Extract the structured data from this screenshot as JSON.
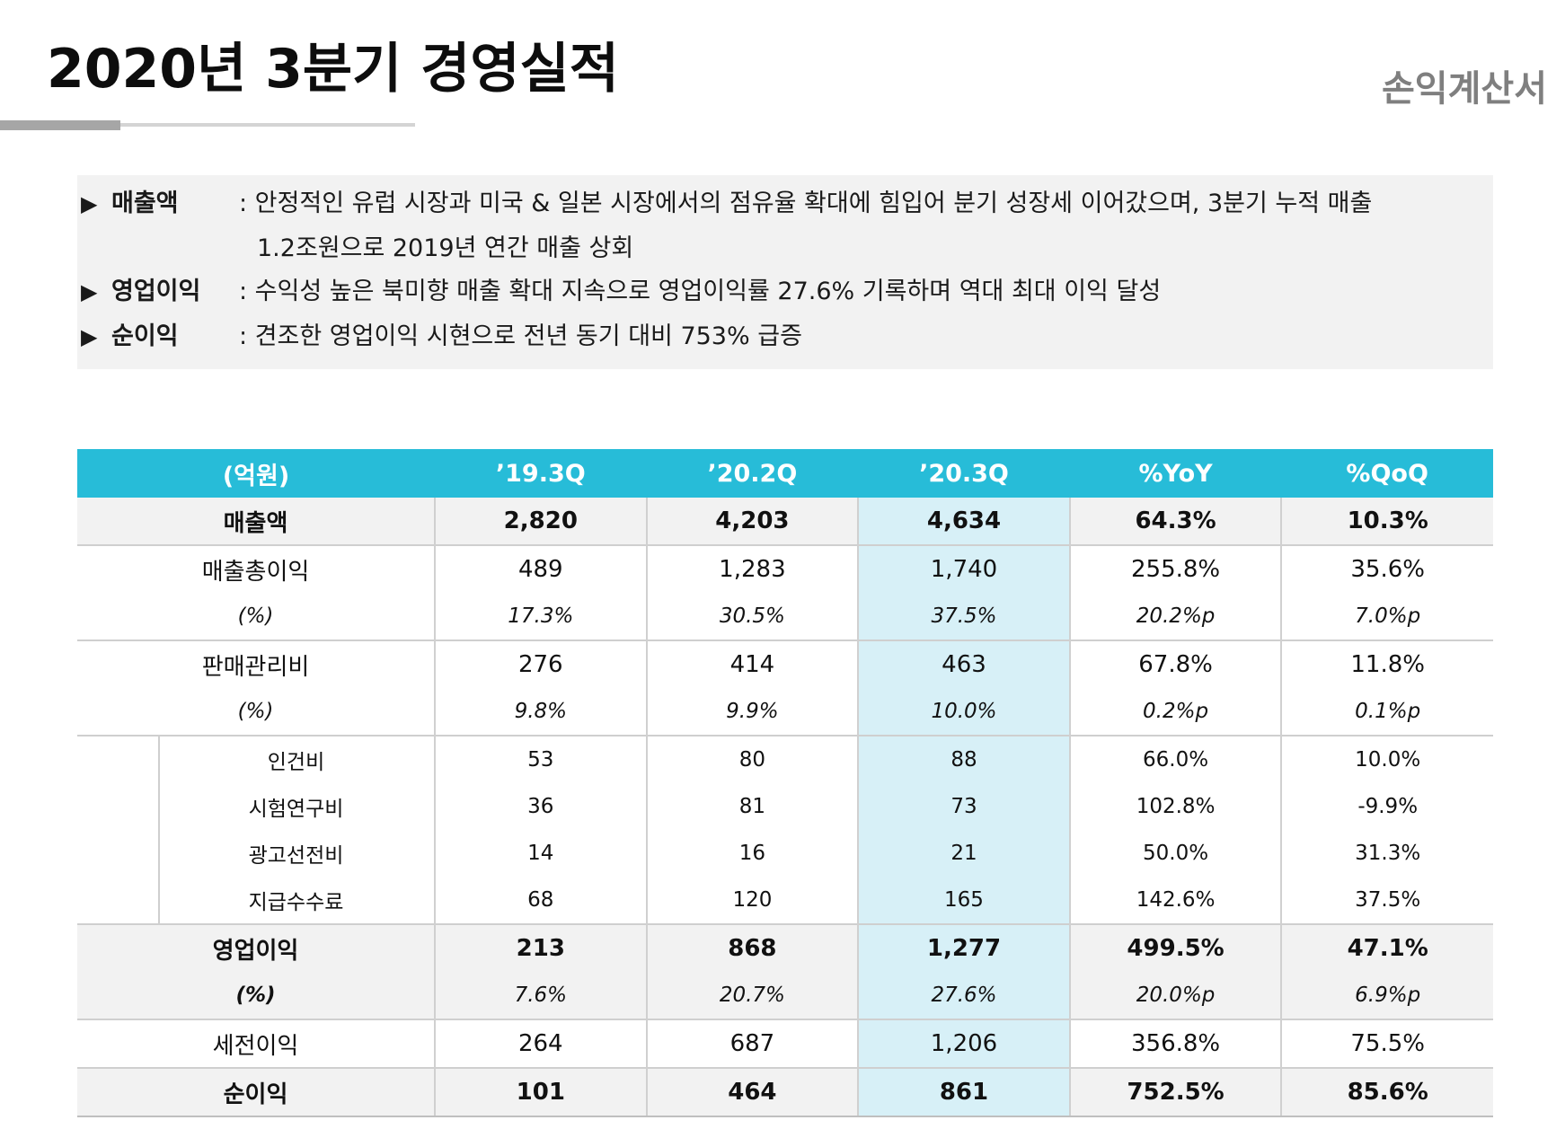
{
  "header": {
    "title": "2020년 3분기 경영실적",
    "subtitle": "손익계산서"
  },
  "summary": [
    {
      "label": "매출액",
      "text": ": 안정적인 유럽 시장과 미국 & 일본 시장에서의 점유율 확대에 힘입어 분기 성장세 이어갔으며, 3분기 누적 매출",
      "continuation": "1.2조원으로 2019년 연간 매출 상회"
    },
    {
      "label": "영업이익",
      "text": ": 수익성 높은 북미향 매출 확대 지속으로 영업이익률 27.6% 기록하며 역대 최대 이익 달성"
    },
    {
      "label": "순이익",
      "text": ": 견조한 영업이익 시현으로 전년 동기 대비 753% 급증"
    }
  ],
  "table": {
    "headers": [
      "(억원)",
      "’19.3Q",
      "’20.2Q",
      "’20.3Q",
      "%YoY",
      "%QoQ"
    ],
    "rows": [
      {
        "label": "매출액",
        "values": [
          "2,820",
          "4,203",
          "4,634",
          "64.3%",
          "10.3%"
        ]
      },
      {
        "label": "매출총이익",
        "values": [
          "489",
          "1,283",
          "1,740",
          "255.8%",
          "35.6%"
        ]
      },
      {
        "label": "(%)",
        "values": [
          "17.3%",
          "30.5%",
          "37.5%",
          "20.2%p",
          "7.0%p"
        ]
      },
      {
        "label": "판매관리비",
        "values": [
          "276",
          "414",
          "463",
          "67.8%",
          "11.8%"
        ]
      },
      {
        "label": "(%)",
        "values": [
          "9.8%",
          "9.9%",
          "10.0%",
          "0.2%p",
          "0.1%p"
        ]
      },
      {
        "label": "인건비",
        "values": [
          "53",
          "80",
          "88",
          "66.0%",
          "10.0%"
        ]
      },
      {
        "label": "시험연구비",
        "values": [
          "36",
          "81",
          "73",
          "102.8%",
          "-9.9%"
        ]
      },
      {
        "label": "광고선전비",
        "values": [
          "14",
          "16",
          "21",
          "50.0%",
          "31.3%"
        ]
      },
      {
        "label": "지급수수료",
        "values": [
          "68",
          "120",
          "165",
          "142.6%",
          "37.5%"
        ]
      },
      {
        "label": "영업이익",
        "values": [
          "213",
          "868",
          "1,277",
          "499.5%",
          "47.1%"
        ]
      },
      {
        "label": "(%)",
        "values": [
          "7.6%",
          "20.7%",
          "27.6%",
          "20.0%p",
          "6.9%p"
        ]
      },
      {
        "label": "세전이익",
        "values": [
          "264",
          "687",
          "1,206",
          "356.8%",
          "75.5%"
        ]
      },
      {
        "label": "순이익",
        "values": [
          "101",
          "464",
          "861",
          "752.5%",
          "85.6%"
        ]
      }
    ]
  },
  "colors": {
    "header_bg": "#27bcd8",
    "highlight_col": "#d7f0f7",
    "shade_row": "#f2f2f2",
    "subtitle": "#7f7f7f"
  }
}
